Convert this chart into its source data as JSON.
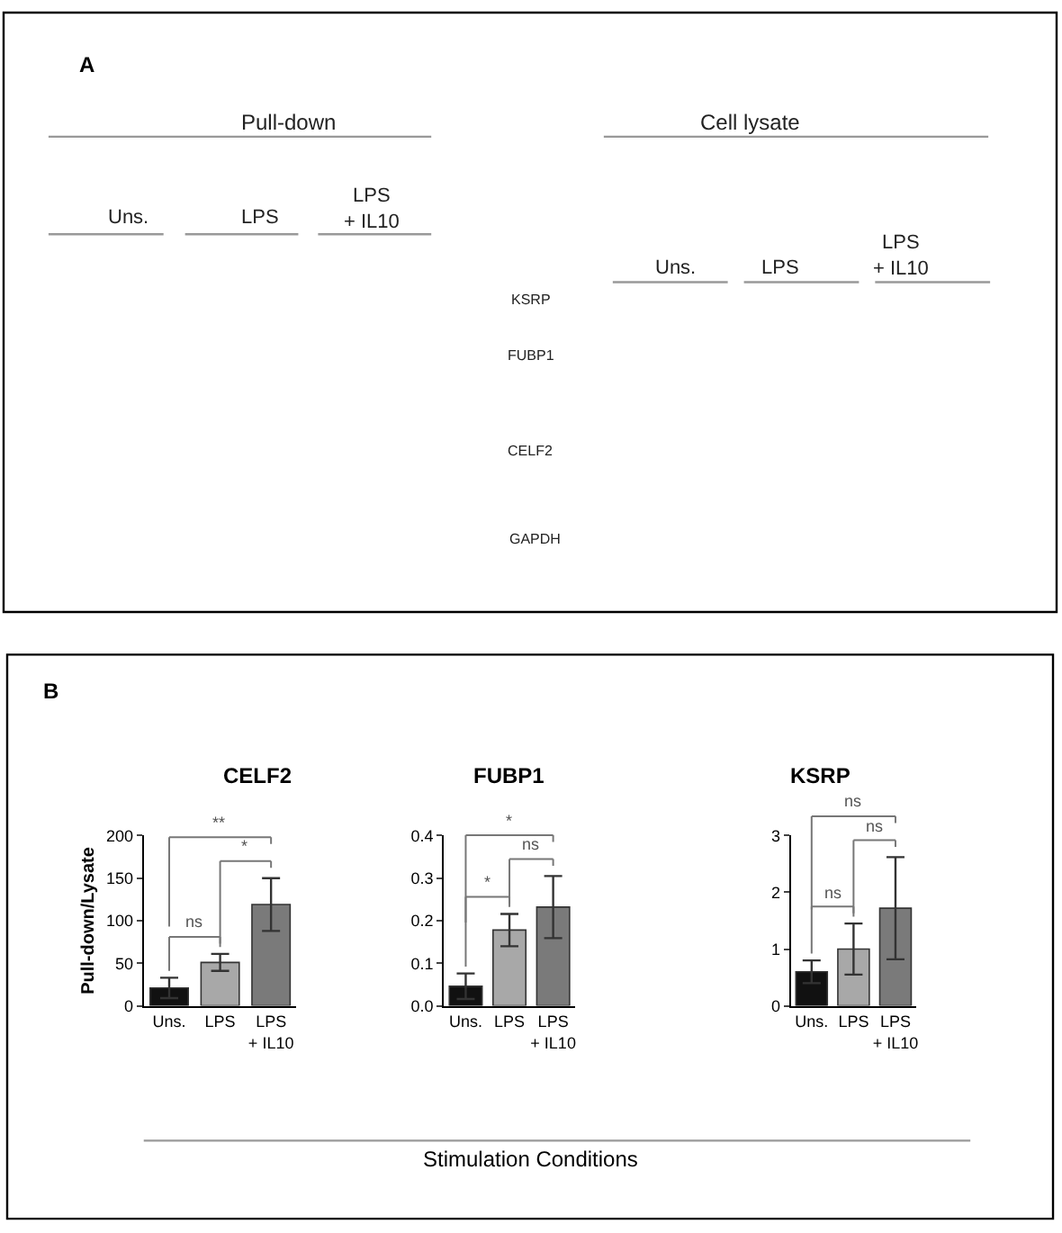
{
  "chart_data": [
    {
      "type": "other",
      "title": "A",
      "annotations": [
        "Pull-down",
        "Cell lysate",
        "Uns.",
        "LPS",
        "LPS\n+ IL10",
        "Uns.",
        "LPS",
        "LPS\n+ IL10",
        "KSRP",
        "FUBP1",
        "CELF2",
        "GAPDH"
      ]
    },
    {
      "type": "bar",
      "title": "CELF2",
      "ylabel": "Pull-down/Lysate",
      "categories": [
        "Uns.",
        "LPS",
        "LPS\n+ IL10"
      ],
      "values": [
        21,
        51,
        119
      ],
      "errors": [
        12,
        10,
        31
      ],
      "colors": [
        "#111111",
        "#a8a8a8",
        "#7a7a7a"
      ],
      "ylim": [
        0,
        200
      ],
      "yticks": [
        0,
        50,
        100,
        150,
        200
      ],
      "annotations": [
        "B",
        "ns",
        "*",
        "**"
      ]
    },
    {
      "type": "bar",
      "title": "FUBP1",
      "xlabel": "Stimulation Conditions",
      "categories": [
        "Uns.",
        "LPS",
        "LPS\n+ IL10"
      ],
      "values": [
        0.046,
        0.178,
        0.232
      ],
      "errors": [
        0.03,
        0.038,
        0.073
      ],
      "colors": [
        "#111111",
        "#a8a8a8",
        "#7a7a7a"
      ],
      "ylim": [
        0,
        0.4
      ],
      "yticks": [
        {
          "value": 0,
          "label": "0.0"
        },
        0.1,
        0.2,
        0.3,
        0.4
      ],
      "annotations": [
        "*",
        "ns",
        "*"
      ]
    },
    {
      "type": "bar",
      "title": "KSRP",
      "categories": [
        "Uns.",
        "LPS",
        "LPS\n+ IL10"
      ],
      "values": [
        0.6,
        1.0,
        1.72
      ],
      "errors": [
        0.2,
        0.45,
        0.9
      ],
      "colors": [
        "#111111",
        "#a8a8a8",
        "#7a7a7a"
      ],
      "ylim": [
        0,
        3
      ],
      "yticks": [
        0,
        1,
        2,
        3
      ],
      "annotations": [
        "ns",
        "ns",
        "ns"
      ]
    }
  ]
}
